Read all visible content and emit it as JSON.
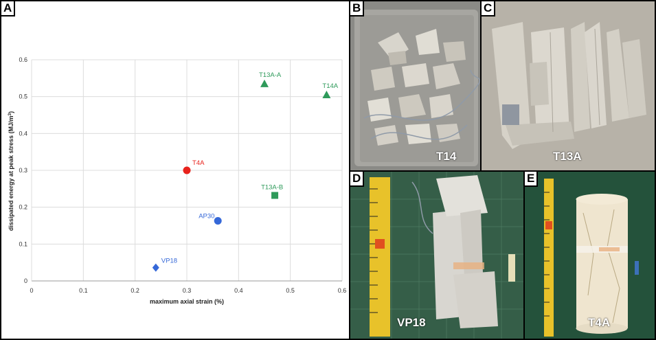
{
  "panels": {
    "A": "A",
    "B": "B",
    "C": "C",
    "D": "D",
    "E": "E"
  },
  "photos": {
    "B": "T14",
    "C": "T13A",
    "D": "VP18",
    "E": "T4A"
  },
  "colors": {
    "green": "#2e9a5a",
    "red": "#e8221c",
    "blue": "#3568d8"
  },
  "chart_data": {
    "type": "scatter",
    "xlabel": "maximum axial strain (%)",
    "ylabel": "dissipated energy at peak stress  (MJ/m",
    "ylabel_sup": "3",
    "ylabel_end": ")",
    "xlim": [
      0,
      0.6
    ],
    "ylim": [
      0,
      0.6
    ],
    "xticks": [
      "0",
      "0.1",
      "0.2",
      "0.3",
      "0.4",
      "0.5",
      "0.6"
    ],
    "yticks": [
      "0",
      "0.1",
      "0.2",
      "0.3",
      "0.4",
      "0.5",
      "0.6"
    ],
    "grid": true,
    "points": [
      {
        "label": "T13A-A",
        "x": 0.45,
        "y": 0.535,
        "marker": "triangle",
        "color": "#2e9a5a"
      },
      {
        "label": "T14A",
        "x": 0.57,
        "y": 0.505,
        "marker": "triangle",
        "color": "#2e9a5a"
      },
      {
        "label": "T4A",
        "x": 0.3,
        "y": 0.3,
        "marker": "circle",
        "color": "#e8221c"
      },
      {
        "label": "T13A-B",
        "x": 0.47,
        "y": 0.232,
        "marker": "square",
        "color": "#2e9a5a"
      },
      {
        "label": "AP30",
        "x": 0.36,
        "y": 0.163,
        "marker": "circle",
        "color": "#3568d8"
      },
      {
        "label": "VP18",
        "x": 0.24,
        "y": 0.036,
        "marker": "diamond",
        "color": "#3568d8"
      }
    ]
  }
}
